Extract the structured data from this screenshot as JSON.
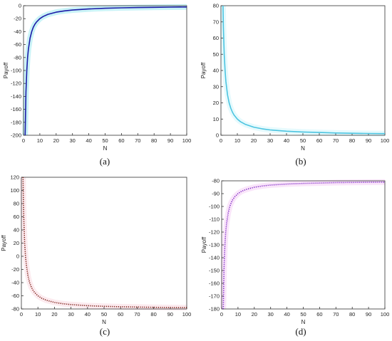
{
  "chart_data": [
    {
      "type": "line",
      "caption": "(a)",
      "xlabel": "N",
      "ylabel": "Payoff",
      "xlim": [
        0,
        100
      ],
      "ylim": [
        -200,
        0
      ],
      "xticks": [
        0,
        10,
        20,
        30,
        40,
        50,
        60,
        70,
        80,
        90,
        100
      ],
      "yticks": [
        0,
        -20,
        -40,
        -60,
        -80,
        -100,
        -120,
        -140,
        -160,
        -180,
        -200
      ],
      "grid": false,
      "series": [
        {
          "color": "#1c1ca8",
          "style": "solid",
          "x": [
            1,
            1.5,
            2,
            2.5,
            3,
            4,
            5,
            6,
            7,
            8,
            10,
            12,
            15,
            20,
            25,
            30,
            40,
            50,
            60,
            70,
            80,
            90,
            100
          ],
          "y": [
            -200,
            -133.3,
            -100,
            -80,
            -66.7,
            -50,
            -40,
            -33.3,
            -28.6,
            -25,
            -20,
            -16.7,
            -13.3,
            -10,
            -8,
            -6.7,
            -5,
            -4,
            -3.3,
            -2.9,
            -2.5,
            -2.2,
            -2
          ]
        }
      ],
      "overlay_color": "#66dde8"
    },
    {
      "type": "line",
      "caption": "(b)",
      "xlabel": "N",
      "ylabel": "Payoff",
      "xlim": [
        0,
        100
      ],
      "ylim": [
        0,
        80
      ],
      "xticks": [
        0,
        10,
        20,
        30,
        40,
        50,
        60,
        70,
        80,
        90,
        100
      ],
      "yticks": [
        0,
        10,
        20,
        30,
        40,
        50,
        60,
        70,
        80
      ],
      "grid": false,
      "series": [
        {
          "color": "#4cc4e0",
          "style": "solid",
          "x": [
            1.25,
            1.5,
            2,
            2.5,
            3,
            4,
            5,
            6,
            7,
            8,
            10,
            12,
            15,
            20,
            25,
            30,
            40,
            50,
            60,
            70,
            80,
            90,
            100
          ],
          "y": [
            80,
            66.7,
            50,
            40,
            33.3,
            25,
            20,
            16.7,
            14.3,
            12.5,
            10,
            8.3,
            6.7,
            5,
            4,
            3.3,
            2.5,
            2,
            1.7,
            1.4,
            1.25,
            1.1,
            1
          ]
        }
      ],
      "overlay_color": "#b8f0f8"
    },
    {
      "type": "line",
      "caption": "(c)",
      "xlabel": "N",
      "ylabel": "Payoff",
      "xlim": [
        0,
        100
      ],
      "ylim": [
        -80,
        120
      ],
      "xticks": [
        0,
        10,
        20,
        30,
        40,
        50,
        60,
        70,
        80,
        90,
        100
      ],
      "yticks": [
        120,
        100,
        80,
        60,
        40,
        20,
        0,
        -20,
        -40,
        -60,
        -80
      ],
      "grid": false,
      "series": [
        {
          "color": "#7a1a12",
          "style": "dotted",
          "x": [
            1,
            1.25,
            1.5,
            2,
            2.5,
            3,
            4,
            5,
            6,
            7,
            8,
            10,
            12,
            15,
            20,
            25,
            30,
            40,
            50,
            60,
            70,
            80,
            90,
            100
          ],
          "y": [
            120,
            80,
            53.3,
            20,
            0,
            -13.3,
            -30,
            -40,
            -46.7,
            -51.4,
            -55,
            -60,
            -63.3,
            -66.7,
            -70,
            -72,
            -73.3,
            -75,
            -76,
            -76.7,
            -77.1,
            -77.5,
            -77.8,
            -78
          ]
        }
      ],
      "overlay_color": "#f6c6d2"
    },
    {
      "type": "line",
      "caption": "(d)",
      "xlabel": "N",
      "ylabel": "Payoff",
      "xlim": [
        0,
        100
      ],
      "ylim": [
        -180,
        -80
      ],
      "xticks": [
        0,
        10,
        20,
        30,
        40,
        50,
        60,
        70,
        80,
        90,
        100
      ],
      "yticks": [
        -80,
        -90,
        -100,
        -110,
        -120,
        -130,
        -140,
        -150,
        -160,
        -170,
        -180
      ],
      "grid": false,
      "series": [
        {
          "color": "#7a22c4",
          "style": "dotted",
          "x": [
            1,
            1.25,
            1.5,
            2,
            2.5,
            3,
            4,
            5,
            6,
            7,
            8,
            10,
            12,
            15,
            20,
            25,
            30,
            40,
            50,
            60,
            70,
            80,
            90,
            100
          ],
          "y": [
            -180,
            -160,
            -146.7,
            -130,
            -120,
            -113.3,
            -105,
            -100,
            -96.7,
            -94.3,
            -92.5,
            -90,
            -88.3,
            -86.7,
            -85,
            -84,
            -83.3,
            -82.5,
            -82,
            -81.7,
            -81.4,
            -81.25,
            -81.1,
            -81
          ]
        }
      ],
      "overlay_color": "#f2b6f2"
    }
  ]
}
